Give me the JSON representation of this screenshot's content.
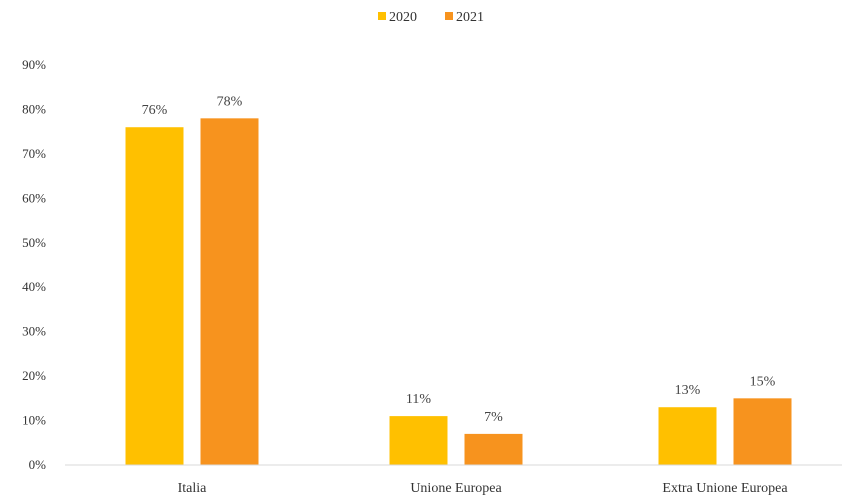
{
  "chart_data": {
    "type": "bar",
    "title": "",
    "xlabel": "",
    "ylabel": "",
    "categories": [
      "Italia",
      "Unione Europea",
      "Extra Unione Europea"
    ],
    "series": [
      {
        "name": "2020",
        "color": "#FFC000",
        "values": [
          76,
          11,
          13
        ],
        "labels": [
          "76%",
          "11%",
          "13%"
        ]
      },
      {
        "name": "2021",
        "color": "#F7931E",
        "values": [
          78,
          7,
          15
        ],
        "labels": [
          "78%",
          "7%",
          "15%"
        ]
      }
    ],
    "ylim": [
      0,
      90
    ],
    "yticks": [
      0,
      10,
      20,
      30,
      40,
      50,
      60,
      70,
      80,
      90
    ],
    "ytick_labels": [
      "0%",
      "10%",
      "20%",
      "30%",
      "40%",
      "50%",
      "60%",
      "70%",
      "80%",
      "90%"
    ],
    "grid": false,
    "legend_position": "top-center",
    "axis_color": "#D9D9D9"
  }
}
